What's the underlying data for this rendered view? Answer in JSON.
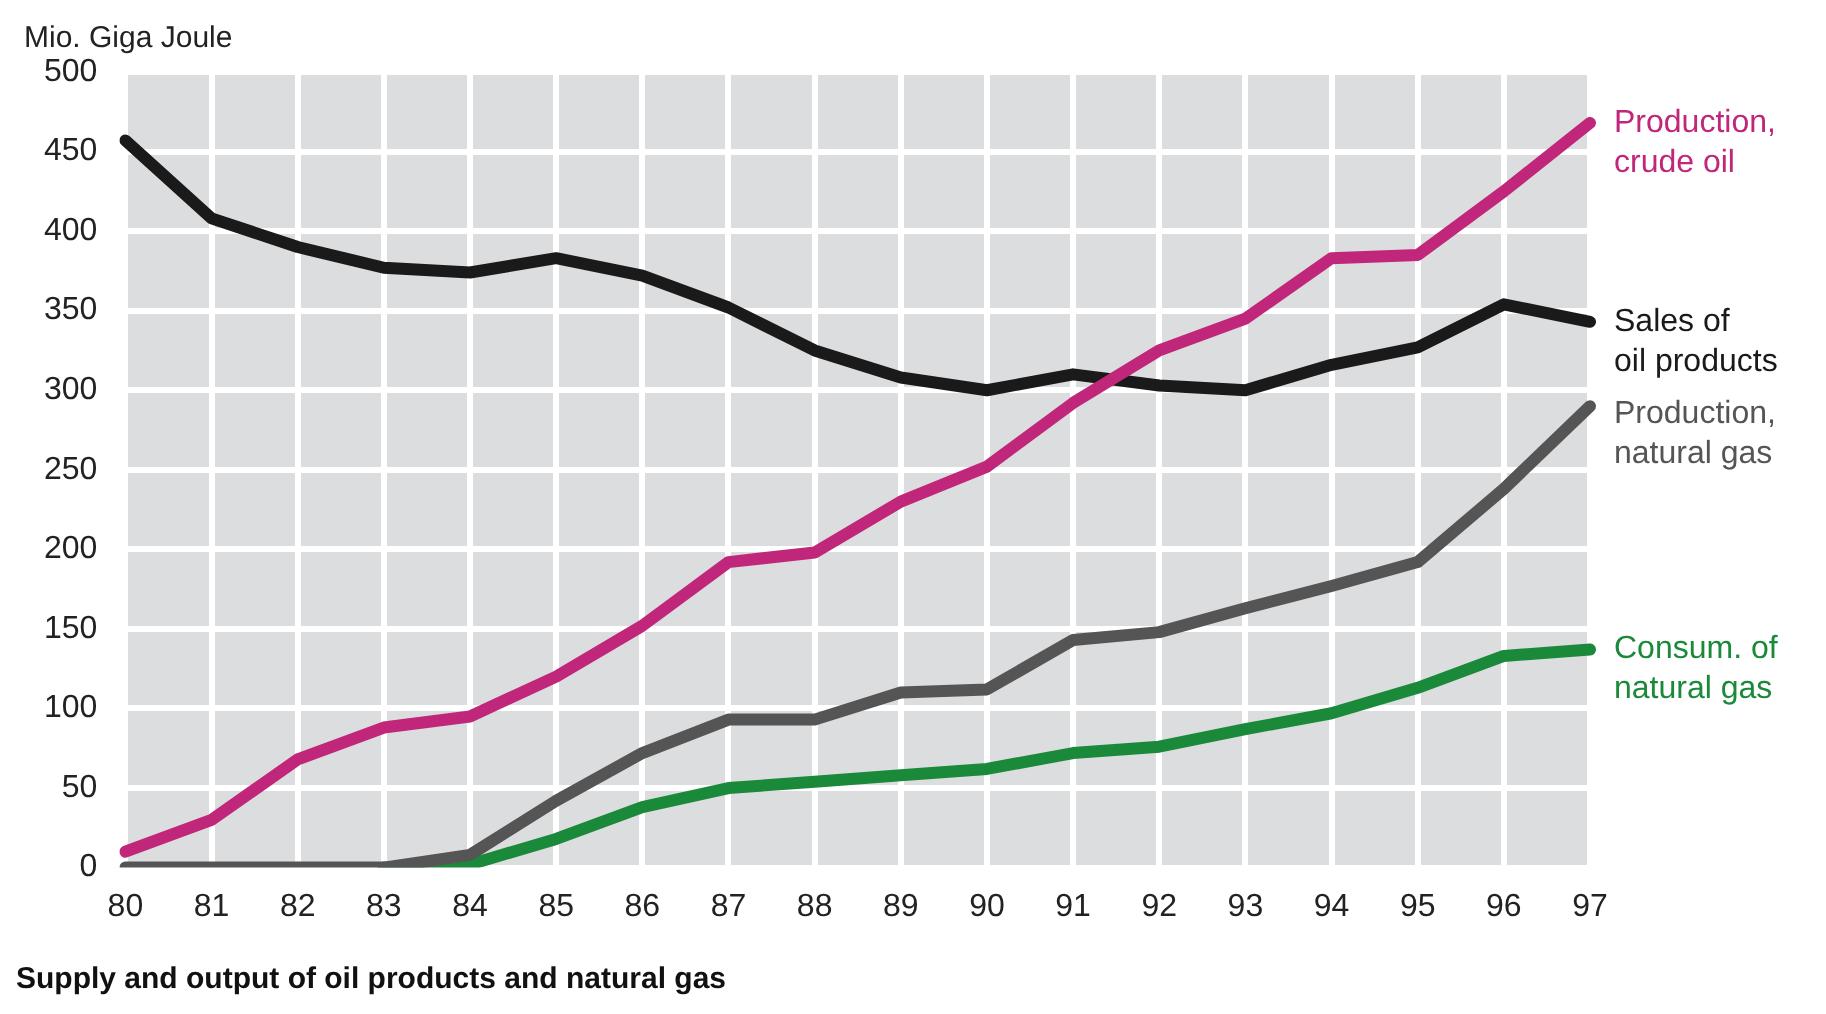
{
  "chart_data": {
    "type": "line",
    "title": "Supply and output of oil products and natural gas",
    "ylabel": "Mio. Giga Joule",
    "categories": [
      "80",
      "81",
      "82",
      "83",
      "84",
      "85",
      "86",
      "87",
      "88",
      "89",
      "90",
      "91",
      "92",
      "93",
      "94",
      "95",
      "96",
      "97"
    ],
    "series": [
      {
        "name": "Production, crude oil",
        "color": "#c0267a",
        "values": [
          10,
          30,
          68,
          88,
          95,
          120,
          152,
          192,
          198,
          230,
          252,
          292,
          325,
          345,
          383,
          385,
          425,
          468
        ]
      },
      {
        "name": "Sales of oil products",
        "color": "#1a1a1a",
        "values": [
          457,
          408,
          390,
          377,
          374,
          383,
          372,
          352,
          325,
          308,
          300,
          310,
          303,
          300,
          316,
          327,
          354,
          343
        ]
      },
      {
        "name": "Production, natural gas",
        "color": "#555555",
        "values": [
          0,
          0,
          0,
          0,
          8,
          42,
          72,
          93,
          93,
          110,
          112,
          143,
          148,
          163,
          177,
          192,
          238,
          290
        ]
      },
      {
        "name": "Consum. of natural gas",
        "color": "#1a8a3a",
        "values": [
          null,
          null,
          null,
          0,
          2,
          18,
          38,
          50,
          54,
          58,
          62,
          72,
          76,
          87,
          97,
          113,
          133,
          137
        ]
      }
    ],
    "ylim": [
      0,
      500
    ],
    "yticks": [
      0,
      50,
      100,
      150,
      200,
      250,
      300,
      350,
      400,
      450,
      500
    ],
    "grid": true,
    "legend": false,
    "marker": "none",
    "line_style": "solid"
  }
}
